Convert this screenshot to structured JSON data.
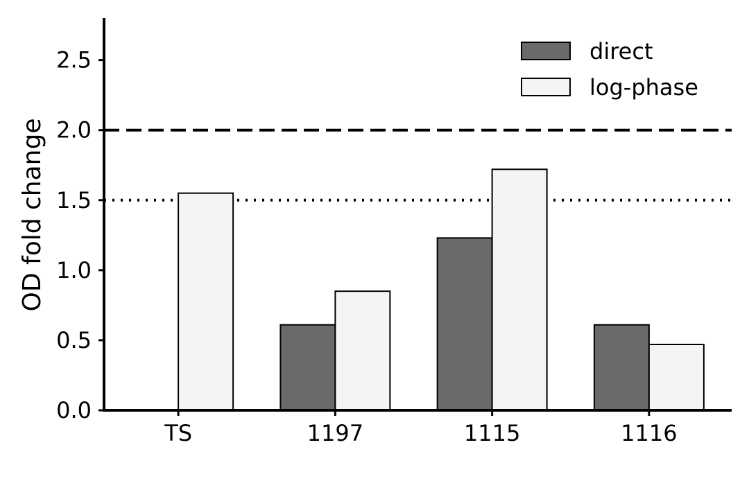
{
  "chart_data": {
    "type": "bar",
    "categories": [
      "TS",
      "1197",
      "1115",
      "1116"
    ],
    "series": [
      {
        "name": "direct",
        "values": [
          0,
          0.61,
          1.23,
          0.61
        ],
        "color": "#6a6a6a"
      },
      {
        "name": "log-phase",
        "values": [
          1.55,
          0.85,
          1.72,
          0.47
        ],
        "color": "#f4f4f4"
      }
    ],
    "xlabel": "",
    "ylabel": "OD fold change",
    "ylim": [
      0,
      2.8
    ],
    "yticks": [
      "0.0",
      "0.5",
      "1.0",
      "1.5",
      "2.0",
      "2.5"
    ],
    "reference_lines": [
      {
        "value": 2.0,
        "style": "dashed"
      },
      {
        "value": 1.5,
        "style": "dotted"
      }
    ],
    "grid": false,
    "legend_position": "top-right"
  }
}
